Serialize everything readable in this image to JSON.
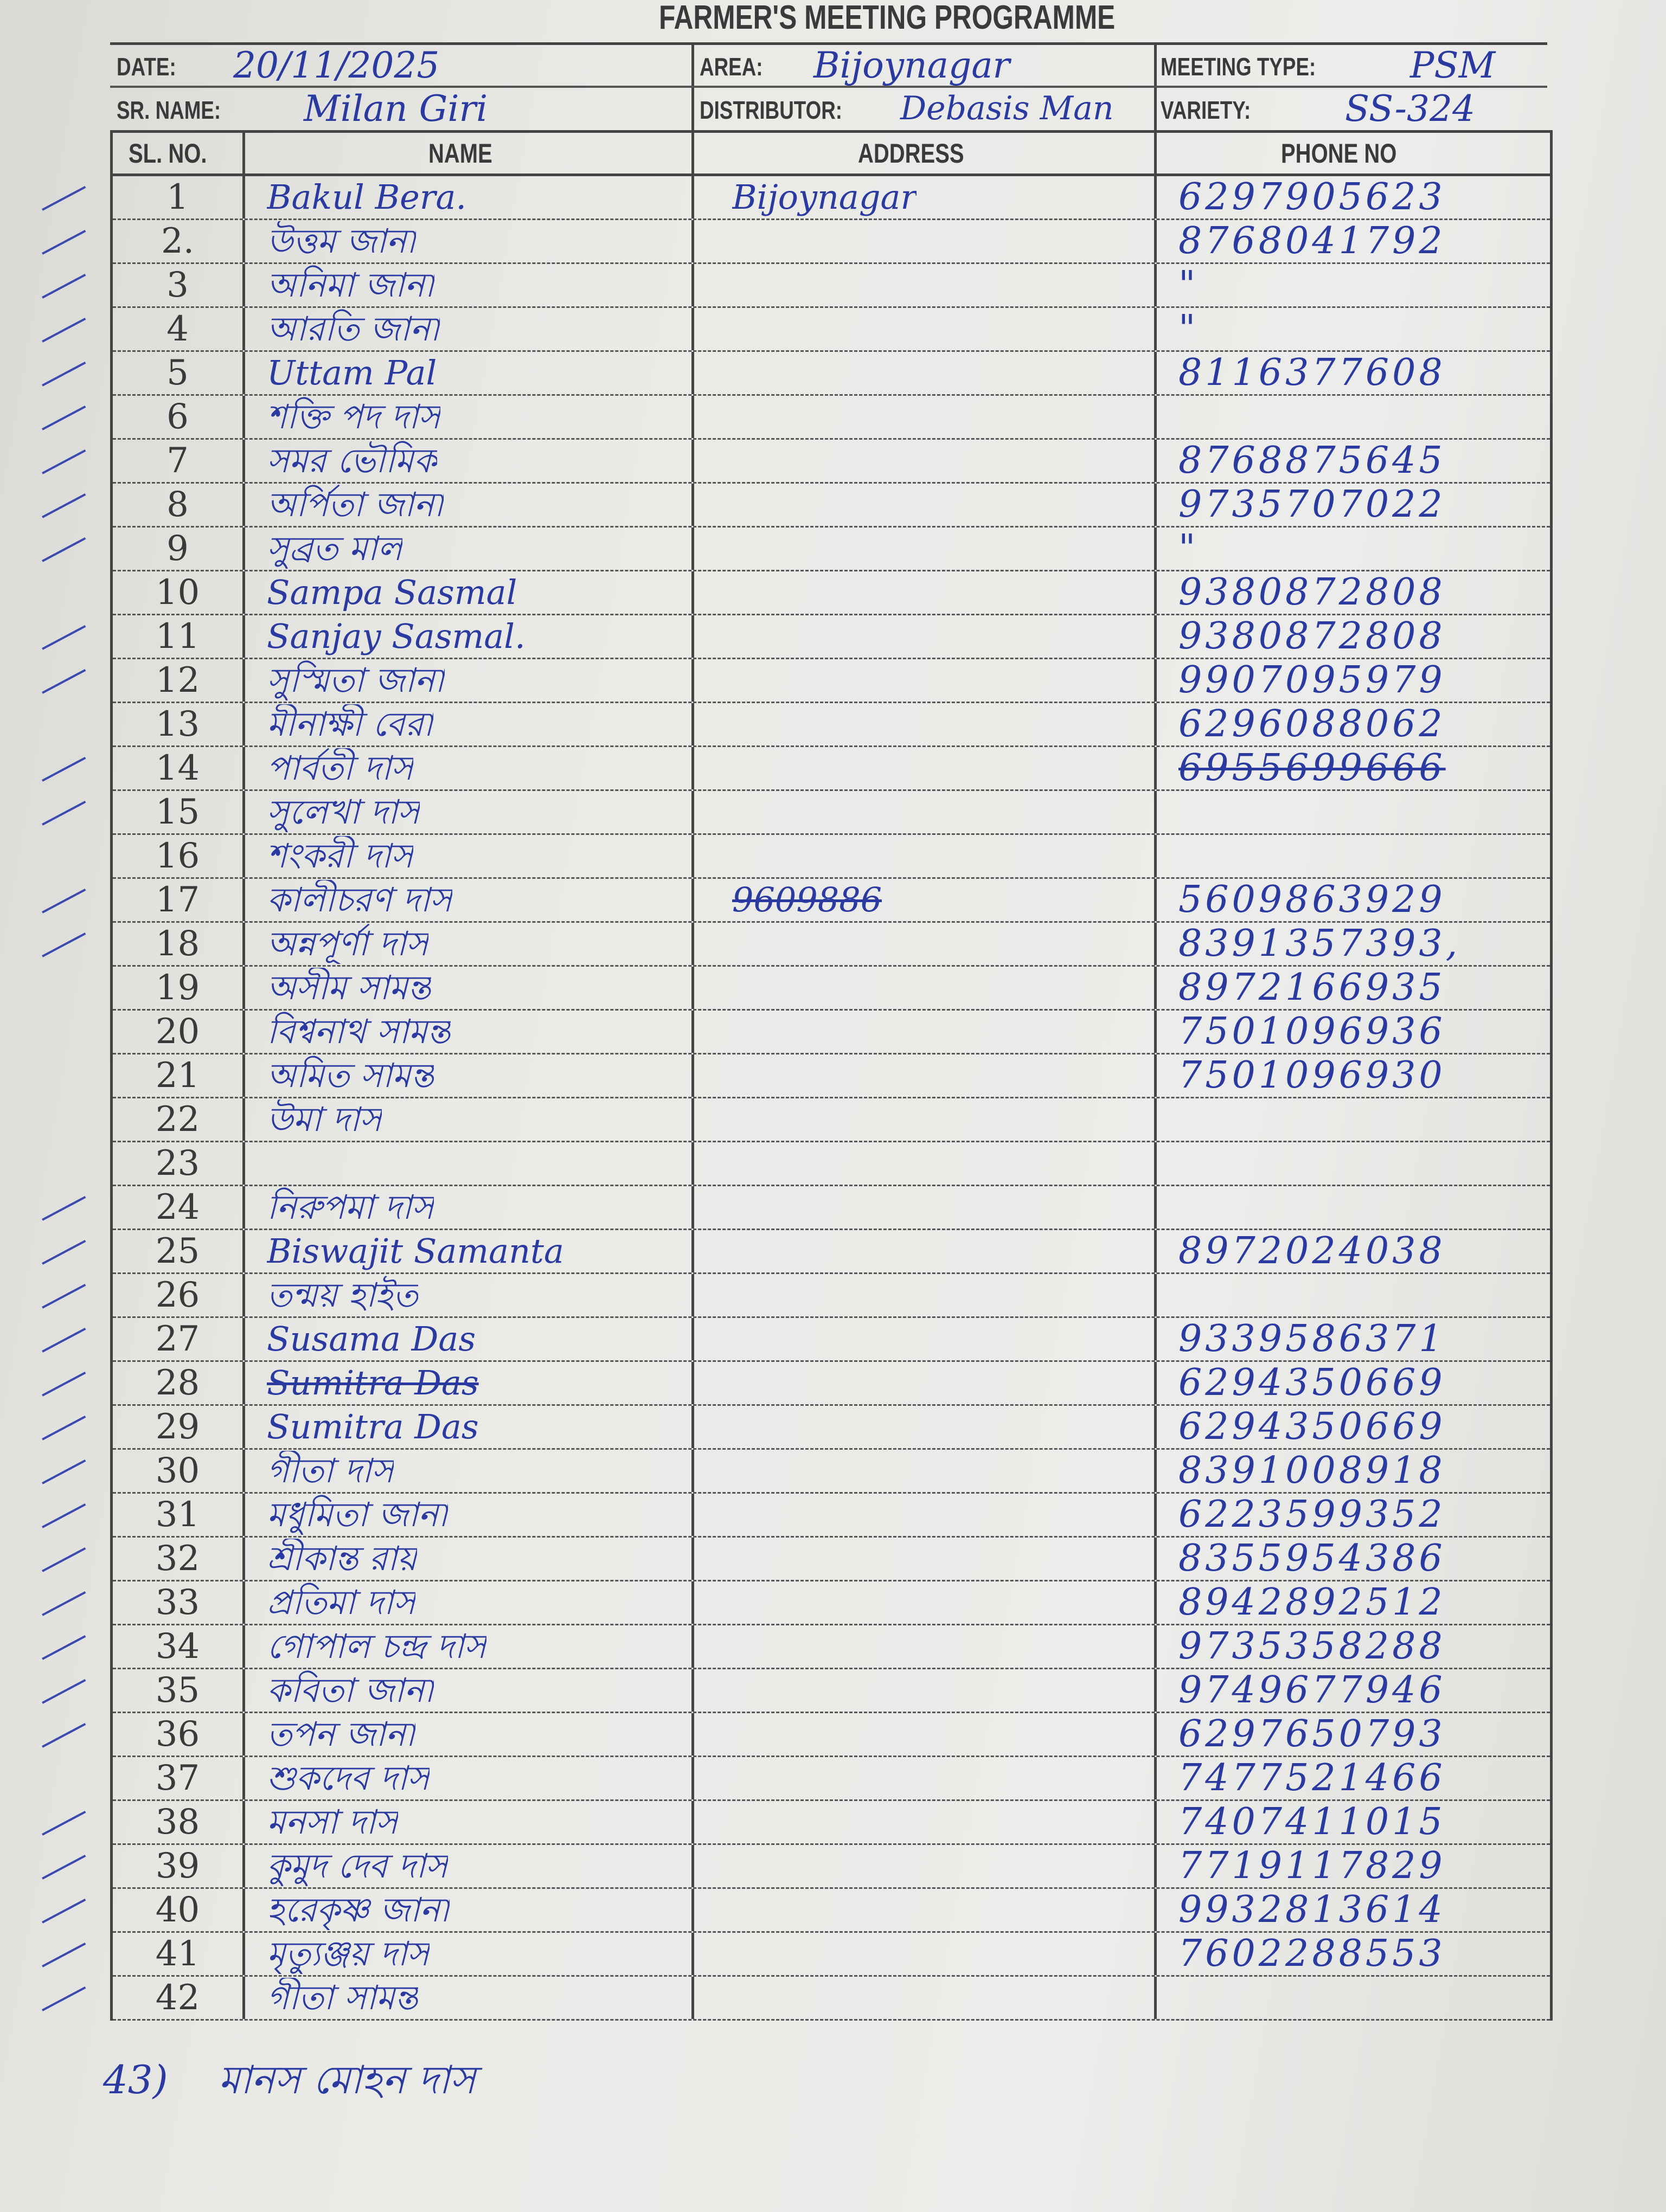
{
  "title": "FARMER'S MEETING PROGRAMME",
  "header": {
    "date_label": "DATE:",
    "date": "20/11/2025",
    "sr_name_label": "SR. NAME:",
    "sr_name": "Milan Giri",
    "area_label": "AREA:",
    "area": "Bijoynagar",
    "distributor_label": "DISTRIBUTOR:",
    "distributor": "Debasis Man",
    "meeting_type_label": "MEETING TYPE:",
    "meeting_type": "PSM",
    "variety_label": "VARIETY:",
    "variety": "SS-324"
  },
  "columns": [
    "SL. NO.",
    "NAME",
    "ADDRESS",
    "PHONE NO"
  ],
  "rows": [
    {
      "sl": "1",
      "name": "Bakul Bera.",
      "address": "Bijoynagar",
      "phone": "6297905623",
      "tick": true
    },
    {
      "sl": "2.",
      "name": "উত্তম জানা",
      "address": "",
      "phone": "8768041792",
      "tick": true
    },
    {
      "sl": "3",
      "name": "অনিমা জানা",
      "address": "",
      "phone": "\"",
      "tick": true
    },
    {
      "sl": "4",
      "name": "আরতি জানা",
      "address": "",
      "phone": "\"",
      "tick": true
    },
    {
      "sl": "5",
      "name": "Uttam Pal",
      "address": "",
      "phone": "8116377608",
      "tick": true
    },
    {
      "sl": "6",
      "name": "শক্তি পদ দাস",
      "address": "",
      "phone": "",
      "tick": true
    },
    {
      "sl": "7",
      "name": "সমর ভৌমিক",
      "address": "",
      "phone": "8768875645",
      "tick": true
    },
    {
      "sl": "8",
      "name": "অর্পিতা জানা",
      "address": "",
      "phone": "9735707022",
      "tick": true
    },
    {
      "sl": "9",
      "name": "সুব্রত মাল",
      "address": "",
      "phone": "\"",
      "tick": true
    },
    {
      "sl": "10",
      "name": "Sampa Sasmal",
      "address": "",
      "phone": "9380872808",
      "tick": false
    },
    {
      "sl": "11",
      "name": "Sanjay Sasmal.",
      "address": "",
      "phone": "9380872808",
      "tick": true
    },
    {
      "sl": "12",
      "name": "সুস্মিতা জানা",
      "address": "",
      "phone": "9907095979",
      "tick": true
    },
    {
      "sl": "13",
      "name": "মীনাক্ষী বেরা",
      "address": "",
      "phone": "6296088062",
      "tick": false
    },
    {
      "sl": "14",
      "name": "পার্বতী দাস",
      "address": "",
      "phone": "6955699666",
      "phone_struck": true,
      "tick": true
    },
    {
      "sl": "15",
      "name": "সুলেখা দাস",
      "address": "",
      "phone": "",
      "tick": true
    },
    {
      "sl": "16",
      "name": "শংকরী দাস",
      "address": "",
      "phone": "",
      "tick": false
    },
    {
      "sl": "17",
      "name": "কালীচরণ দাস",
      "address": "9609886",
      "address_struck": true,
      "phone": "5609863929",
      "tick": true
    },
    {
      "sl": "18",
      "name": "অন্নপূর্ণা দাস",
      "address": "",
      "phone": "8391357393,",
      "tick": true
    },
    {
      "sl": "19",
      "name": "অসীম সামন্ত",
      "address": "",
      "phone": "8972166935",
      "tick": false
    },
    {
      "sl": "20",
      "name": "বিশ্বনাথ সামন্ত",
      "address": "",
      "phone": "7501096936",
      "tick": false
    },
    {
      "sl": "21",
      "name": "অমিত সামন্ত",
      "address": "",
      "phone": "7501096930",
      "tick": false
    },
    {
      "sl": "22",
      "name": "উমা দাস",
      "address": "",
      "phone": "",
      "tick": false
    },
    {
      "sl": "23",
      "name": "",
      "address": "",
      "phone": "",
      "tick": false
    },
    {
      "sl": "24",
      "name": "নিরুপমা দাস",
      "address": "",
      "phone": "",
      "tick": true
    },
    {
      "sl": "25",
      "name": "Biswajit Samanta",
      "address": "",
      "phone": "8972024038",
      "tick": true
    },
    {
      "sl": "26",
      "name": "তন্ময় হাইত",
      "address": "",
      "phone": "",
      "tick": true
    },
    {
      "sl": "27",
      "name": "Susama Das",
      "address": "",
      "phone": "9339586371",
      "tick": true
    },
    {
      "sl": "28",
      "name": "Sumitra Das",
      "name_struck": true,
      "address": "",
      "phone": "6294350669",
      "tick": true
    },
    {
      "sl": "29",
      "name": "Sumitra Das",
      "address": "",
      "phone": "6294350669",
      "tick": true
    },
    {
      "sl": "30",
      "name": "গীতা দাস",
      "address": "",
      "phone": "8391008918",
      "tick": true
    },
    {
      "sl": "31",
      "name": "মধুমিতা জানা",
      "address": "",
      "phone": "6223599352",
      "tick": true
    },
    {
      "sl": "32",
      "name": "শ্রীকান্ত রায়",
      "address": "",
      "phone": "8355954386",
      "tick": true
    },
    {
      "sl": "33",
      "name": "প্রতিমা দাস",
      "address": "",
      "phone": "8942892512",
      "tick": true
    },
    {
      "sl": "34",
      "name": "গোপাল চন্দ্র দাস",
      "address": "",
      "phone": "9735358288",
      "tick": true
    },
    {
      "sl": "35",
      "name": "কবিতা জানা",
      "address": "",
      "phone": "9749677946",
      "tick": true
    },
    {
      "sl": "36",
      "name": "তপন জানা",
      "address": "",
      "phone": "6297650793",
      "tick": true
    },
    {
      "sl": "37",
      "name": "শুকদেব দাস",
      "address": "",
      "phone": "7477521466",
      "tick": false
    },
    {
      "sl": "38",
      "name": "মনসা দাস",
      "address": "",
      "phone": "7407411015",
      "tick": true
    },
    {
      "sl": "39",
      "name": "কুমুদ দেব দাস",
      "address": "",
      "phone": "7719117829",
      "tick": true
    },
    {
      "sl": "40",
      "name": "হরেকৃষ্ণ জানা",
      "address": "",
      "phone": "9932813614",
      "tick": true
    },
    {
      "sl": "41",
      "name": "মৃত্যুঞ্জয় দাস",
      "address": "",
      "phone": "7602288553",
      "tick": true
    },
    {
      "sl": "42",
      "name": "গীতা সামন্ত",
      "address": "",
      "phone": "",
      "tick": true
    }
  ],
  "extra_entry": {
    "number": "43)",
    "name": "মানস মোহন দাস"
  },
  "colors": {
    "ink": "#2b3aa0",
    "print": "#3a3a3a",
    "paper": "#e9e9e6"
  }
}
